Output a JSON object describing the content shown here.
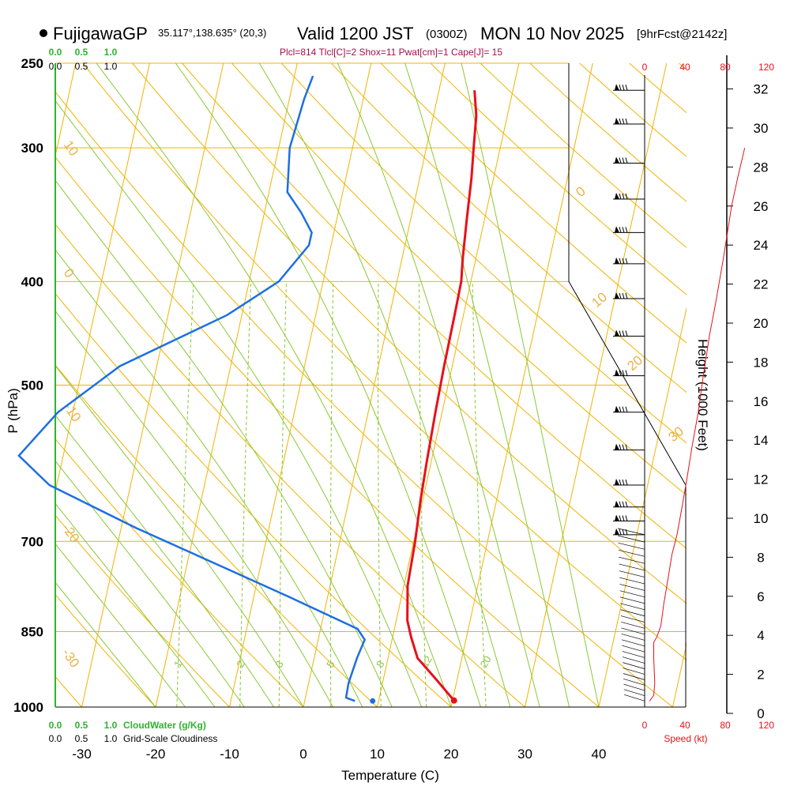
{
  "header": {
    "station": "FujigawaGP",
    "coords": "35.117°,138.635° (20,3)",
    "valid": "Valid 1200 JST",
    "utc": "(0300Z)",
    "date": "MON 10 Nov 2025",
    "forecast": "[9hrFcst@2142z]",
    "indices": "Plcl=814 Tlcl[C]=2 Shox=11 Pwat[cm]=1 Cape[J]= 15"
  },
  "colors": {
    "temperature": "#e8101a",
    "dewpoint": "#1d6fe0",
    "isotherm": "#f0b400",
    "dry_adiabat": "#f0b400",
    "moist_adiabat": "#8bc832",
    "mixing_ratio": "#8bc832",
    "cloud_axis": "#2db52d",
    "speed": "#e8101a"
  },
  "chart_data": {
    "type": "line",
    "title": "FujigawaGP Valid 1200 JST (0300Z) MON 10 Nov 2025",
    "xlabel": "Temperature (C)",
    "ylabel": "P (hPa)",
    "y2label": "Height (1000 Feet)",
    "x_ticks": [
      -30,
      -20,
      -10,
      0,
      10,
      20,
      30,
      40
    ],
    "y_ticks": [
      250,
      300,
      400,
      500,
      700,
      850,
      1000
    ],
    "height_ticks": [
      0,
      2,
      4,
      6,
      8,
      10,
      12,
      14,
      16,
      18,
      20,
      22,
      24,
      26,
      28,
      30,
      32
    ],
    "isotherm_labels": [
      "10",
      "0",
      "-10",
      "-20",
      "-30"
    ],
    "dry_adiabat_labels": [
      "0",
      "10",
      "20",
      "30"
    ],
    "mixing_ratio_labels": [
      "1",
      "2",
      "3",
      "5",
      "8",
      "12",
      "20"
    ],
    "cloud_water_ticks": [
      "0.0",
      "0.5",
      "1.0"
    ],
    "cloudiness_ticks": [
      "0.0",
      "0.5",
      "1.0"
    ],
    "cloud_water_label": "CloudWater (g/Kg)",
    "cloudiness_label": "Grid-Scale Cloudiness",
    "speed_ticks": [
      "0",
      "40",
      "80",
      "120"
    ],
    "speed_label": "Speed (kt)",
    "series": [
      {
        "name": "Temperature",
        "points": [
          [
            20.2,
            986
          ],
          [
            17,
            940
          ],
          [
            14,
            900
          ],
          [
            12.5,
            860
          ],
          [
            11.5,
            830
          ],
          [
            10.5,
            770
          ],
          [
            10.2,
            700
          ],
          [
            9.7,
            640
          ],
          [
            9.4,
            590
          ],
          [
            9.1,
            530
          ],
          [
            8.9,
            480
          ],
          [
            8.8,
            430
          ],
          [
            8.7,
            400
          ],
          [
            8.2,
            380
          ],
          [
            7.6,
            350
          ],
          [
            7.0,
            320
          ],
          [
            6.4,
            300
          ],
          [
            5.8,
            280
          ],
          [
            4.8,
            265
          ]
        ]
      },
      {
        "name": "Dewpoint",
        "points": [
          [
            6.8,
            987
          ],
          [
            5.5,
            980
          ],
          [
            5.4,
            950
          ],
          [
            5.8,
            900
          ],
          [
            6.3,
            865
          ],
          [
            5.0,
            845
          ],
          [
            -5.0,
            790
          ],
          [
            -15.0,
            740
          ],
          [
            -28.0,
            680
          ],
          [
            -41.0,
            620
          ],
          [
            -46,
            582
          ],
          [
            -42,
            530
          ],
          [
            -35,
            480
          ],
          [
            -22.0,
            430
          ],
          [
            -16.0,
            400
          ],
          [
            -13.0,
            370
          ],
          [
            -13.0,
            360
          ],
          [
            -15.0,
            345
          ],
          [
            -17.5,
            330
          ],
          [
            -18.5,
            300
          ],
          [
            -18,
            270
          ],
          [
            -17.5,
            257
          ]
        ]
      },
      {
        "name": "Surface dewpoint",
        "points": [
          [
            9.2,
            987
          ]
        ]
      },
      {
        "name": "Parcel path",
        "points": [
          [
            20.2,
            986
          ],
          [
            14,
            900
          ],
          [
            12.5,
            860
          ]
        ]
      },
      {
        "name": "Wind speed",
        "points": [
          [
            5,
            987
          ],
          [
            9,
            975
          ],
          [
            10,
            950
          ],
          [
            9,
            900
          ],
          [
            9,
            870
          ],
          [
            12,
            860
          ],
          [
            16,
            840
          ],
          [
            19,
            800
          ],
          [
            23,
            760
          ],
          [
            27,
            720
          ],
          [
            32,
            690
          ],
          [
            37,
            650
          ],
          [
            42,
            610
          ],
          [
            47,
            570
          ],
          [
            53,
            530
          ],
          [
            58,
            490
          ],
          [
            64,
            450
          ],
          [
            70,
            420
          ],
          [
            78,
            380
          ],
          [
            86,
            340
          ],
          [
            92,
            320
          ],
          [
            99,
            300
          ]
        ]
      }
    ]
  }
}
